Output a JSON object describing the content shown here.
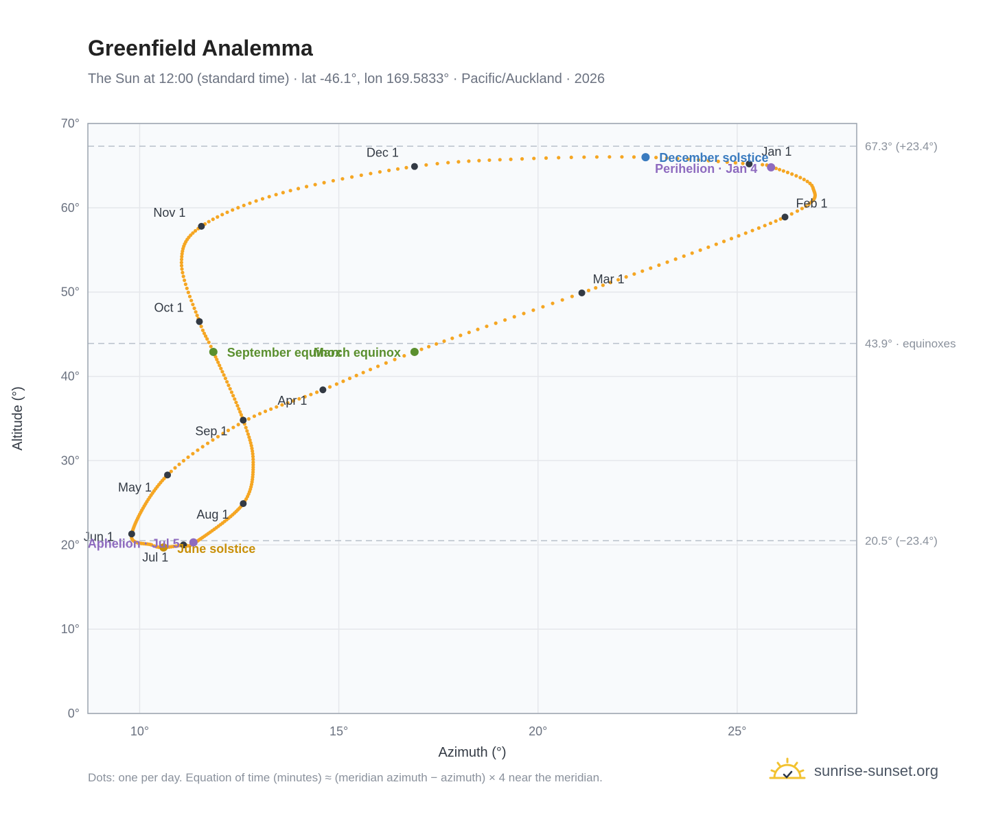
{
  "title": "Greenfield Analemma",
  "subtitle": "The Sun at 12:00 (standard time) · lat -46.1°, lon 169.5833° · Pacific/Auckland · 2026",
  "footnote": "Dots: one per day. Equation of time (minutes) ≈ (meridian azimuth − azimuth) × 4 near the meridian.",
  "brand": {
    "name": "sunrise-sunset.org",
    "icon": "sun-logo-icon"
  },
  "colors": {
    "curve": "#f5a623",
    "month_marker": "#333a44",
    "grid": "#e5e7eb",
    "plot_bg": "#f8fafc",
    "frame": "#9aa3ae",
    "reference_line": "#b8c0ca",
    "december_solstice": "#3a7bbf",
    "june_solstice": "#c9900a",
    "equinox": "#5a8f2e",
    "apsis": "#8e6bbf"
  },
  "chart_data": {
    "type": "scatter",
    "title": "Greenfield Analemma",
    "xlabel": "Azimuth (°)",
    "ylabel": "Altitude (°)",
    "xlim": [
      8.7,
      28.0
    ],
    "ylim": [
      0,
      70
    ],
    "xticks": [
      10,
      15,
      20,
      25
    ],
    "yticks": [
      0,
      10,
      20,
      30,
      40,
      50,
      60,
      70
    ],
    "xtick_labels": [
      "10°",
      "15°",
      "20°",
      "25°"
    ],
    "ytick_labels": [
      "0°",
      "10°",
      "20°",
      "30°",
      "40°",
      "50°",
      "60°",
      "70°"
    ],
    "grid": true,
    "series_points": [
      {
        "doy": 1,
        "x": 25.3,
        "y": 65.2
      },
      {
        "doy": 4,
        "x": 25.9,
        "y": 64.8
      },
      {
        "doy": 16,
        "x": 26.9,
        "y": 62.4
      },
      {
        "doy": 32,
        "x": 26.2,
        "y": 58.9
      },
      {
        "doy": 60,
        "x": 21.1,
        "y": 49.9
      },
      {
        "doy": 79,
        "x": 16.9,
        "y": 42.9
      },
      {
        "doy": 91,
        "x": 14.6,
        "y": 38.4
      },
      {
        "doy": 105,
        "x": 12.6,
        "y": 34.6
      },
      {
        "doy": 121,
        "x": 10.7,
        "y": 28.3
      },
      {
        "doy": 152,
        "x": 9.8,
        "y": 21.3
      },
      {
        "doy": 167,
        "x": 10.3,
        "y": 20.0
      },
      {
        "doy": 172,
        "x": 10.6,
        "y": 19.7
      },
      {
        "doy": 182,
        "x": 11.1,
        "y": 20.0
      },
      {
        "doy": 186,
        "x": 11.4,
        "y": 20.3
      },
      {
        "doy": 213,
        "x": 12.6,
        "y": 24.9
      },
      {
        "doy": 230,
        "x": 12.85,
        "y": 29.8
      },
      {
        "doy": 244,
        "x": 12.6,
        "y": 34.8
      },
      {
        "doy": 266,
        "x": 11.85,
        "y": 42.9
      },
      {
        "doy": 274,
        "x": 11.5,
        "y": 46.5
      },
      {
        "doy": 290,
        "x": 11.05,
        "y": 53.5
      },
      {
        "doy": 305,
        "x": 11.55,
        "y": 57.8
      },
      {
        "doy": 320,
        "x": 13.6,
        "y": 61.8
      },
      {
        "doy": 335,
        "x": 16.9,
        "y": 64.9
      },
      {
        "doy": 345,
        "x": 19.6,
        "y": 65.8
      },
      {
        "doy": 355,
        "x": 22.7,
        "y": 66.0
      },
      {
        "doy": 366,
        "x": 25.3,
        "y": 65.2
      }
    ],
    "month_markers": [
      {
        "label": "Jan 1",
        "x": 25.3,
        "y": 65.2
      },
      {
        "label": "Feb 1",
        "x": 26.2,
        "y": 58.9
      },
      {
        "label": "Mar 1",
        "x": 21.1,
        "y": 49.9
      },
      {
        "label": "Apr 1",
        "x": 14.6,
        "y": 38.4
      },
      {
        "label": "May 1",
        "x": 10.7,
        "y": 28.3
      },
      {
        "label": "Jun 1",
        "x": 9.8,
        "y": 21.3
      },
      {
        "label": "Jul 1",
        "x": 11.1,
        "y": 20.0
      },
      {
        "label": "Aug 1",
        "x": 12.6,
        "y": 24.9
      },
      {
        "label": "Sep 1",
        "x": 12.6,
        "y": 34.8
      },
      {
        "label": "Oct 1",
        "x": 11.5,
        "y": 46.5
      },
      {
        "label": "Nov 1",
        "x": 11.55,
        "y": 57.8
      },
      {
        "label": "Dec 1",
        "x": 16.9,
        "y": 64.9
      }
    ],
    "events": [
      {
        "label": "December solstice",
        "x": 22.7,
        "y": 66.0,
        "color_key": "december_solstice"
      },
      {
        "label": "Perihelion · Jan 4",
        "x": 25.85,
        "y": 64.8,
        "color_key": "apsis"
      },
      {
        "label": "March equinox",
        "x": 16.9,
        "y": 42.9,
        "color_key": "equinox"
      },
      {
        "label": "September equinox",
        "x": 11.85,
        "y": 42.9,
        "color_key": "equinox"
      },
      {
        "label": "June solstice",
        "x": 10.6,
        "y": 19.7,
        "color_key": "june_solstice"
      },
      {
        "label": "Aphelion · Jul 5",
        "x": 11.35,
        "y": 20.3,
        "color_key": "apsis"
      }
    ],
    "reference_lines": [
      {
        "y": 67.3,
        "label": "67.3° (+23.4°)"
      },
      {
        "y": 43.9,
        "label": "43.9° · equinoxes"
      },
      {
        "y": 20.5,
        "label": "20.5° (−23.4°)"
      }
    ]
  }
}
